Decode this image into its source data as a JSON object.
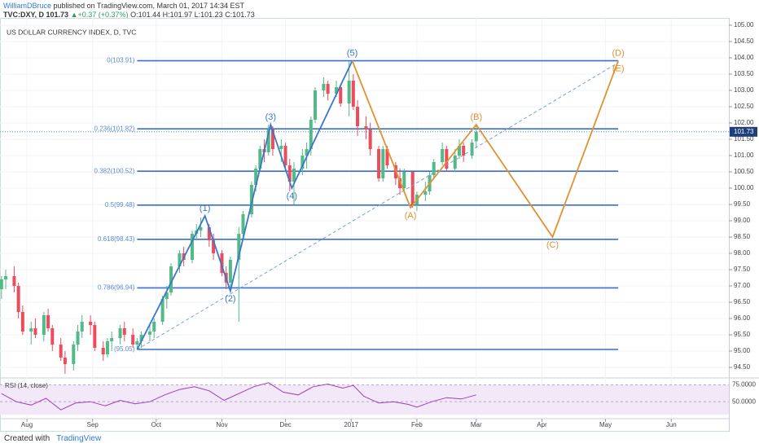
{
  "header": {
    "author": "WilliamDBruce",
    "published": "published on TradingView.com, March 01, 2017 14:34 EST",
    "symbol": "TVC:DXY, D",
    "last": "101.73",
    "change": "+0.37 (+0.37%)",
    "open": "O:101.44",
    "high": "H:101.97",
    "low": "L:101.23",
    "close": "C:101.73"
  },
  "footer": {
    "created": "Created with",
    "brand": "TradingView"
  },
  "chart_data": {
    "type": "candlestick",
    "title": "US DOLLAR CURRENCY INDEX, D, TVC",
    "up_color": "#53b987",
    "down_color": "#eb4d5c",
    "grid": true,
    "xlim": [
      18.3,
      362.2
    ],
    "xticks": [
      {
        "value": 31,
        "label": "Aug"
      },
      {
        "value": 62,
        "label": "Sep"
      },
      {
        "value": 92,
        "label": "Oct"
      },
      {
        "value": 123,
        "label": "Nov"
      },
      {
        "value": 153,
        "label": "Dec"
      },
      {
        "value": 184,
        "label": "2017"
      },
      {
        "value": 215,
        "label": "Feb"
      },
      {
        "value": 243,
        "label": "Mar"
      },
      {
        "value": 274,
        "label": "Apr"
      },
      {
        "value": 304,
        "label": "May"
      },
      {
        "value": 335,
        "label": "Jun"
      }
    ],
    "ylim": [
      94.2,
      105.225
    ],
    "yticks": [
      {
        "value": 94.5,
        "label": "94.50"
      },
      {
        "value": 95,
        "label": "95.00"
      },
      {
        "value": 95.5,
        "label": "95.50"
      },
      {
        "value": 96,
        "label": "96.00"
      },
      {
        "value": 96.5,
        "label": "96.50"
      },
      {
        "value": 97,
        "label": "97.00"
      },
      {
        "value": 97.5,
        "label": "97.50"
      },
      {
        "value": 98,
        "label": "98.00"
      },
      {
        "value": 98.5,
        "label": "98.50"
      },
      {
        "value": 99,
        "label": "99.00"
      },
      {
        "value": 99.5,
        "label": "99.50"
      },
      {
        "value": 100,
        "label": "100.00"
      },
      {
        "value": 100.5,
        "label": "100.50"
      },
      {
        "value": 101,
        "label": "101.00"
      },
      {
        "value": 101.5,
        "label": "101.50"
      },
      {
        "value": 102,
        "label": "102.00"
      },
      {
        "value": 102.5,
        "label": "102.50"
      },
      {
        "value": 103,
        "label": "103.00"
      },
      {
        "value": 103.5,
        "label": "103.50"
      },
      {
        "value": 104,
        "label": "104.00"
      },
      {
        "value": 104.5,
        "label": "104.50"
      },
      {
        "value": 105,
        "label": "105.00"
      }
    ],
    "last_price": {
      "value": 101.73,
      "label": "101.73"
    },
    "candles": [
      [
        19,
        96.9,
        97.3,
        96.6,
        97.2
      ],
      [
        21,
        97.2,
        97.5,
        96.9,
        97.3
      ],
      [
        25,
        97.3,
        97.6,
        96.8,
        97.0
      ],
      [
        27,
        97.0,
        97.1,
        96.0,
        96.2
      ],
      [
        29,
        96.2,
        96.4,
        95.5,
        95.6
      ],
      [
        33,
        95.6,
        95.9,
        95.2,
        95.7
      ],
      [
        35,
        95.7,
        96.0,
        95.4,
        95.5
      ],
      [
        39,
        95.5,
        96.2,
        95.3,
        96.1
      ],
      [
        41,
        96.1,
        96.3,
        95.6,
        95.7
      ],
      [
        43,
        95.7,
        95.8,
        95.0,
        95.2
      ],
      [
        47,
        95.2,
        95.4,
        94.7,
        94.8
      ],
      [
        49,
        94.8,
        95.0,
        94.3,
        94.6
      ],
      [
        53,
        94.6,
        95.3,
        94.4,
        95.2
      ],
      [
        55,
        95.2,
        95.8,
        95.0,
        95.6
      ],
      [
        57,
        95.6,
        96.1,
        95.4,
        95.9
      ],
      [
        61,
        95.9,
        96.1,
        95.5,
        95.8
      ],
      [
        63,
        95.8,
        95.9,
        95.0,
        95.1
      ],
      [
        67,
        95.1,
        95.3,
        94.7,
        94.9
      ],
      [
        69,
        94.9,
        95.4,
        94.8,
        95.3
      ],
      [
        71,
        95.3,
        95.6,
        95.0,
        95.4
      ],
      [
        75,
        95.4,
        95.8,
        95.2,
        95.7
      ],
      [
        77,
        95.7,
        95.9,
        95.3,
        95.5
      ],
      [
        81,
        95.5,
        95.7,
        95.1,
        95.2
      ],
      [
        83,
        95.2,
        95.4,
        95.05,
        95.3
      ],
      [
        85,
        95.3,
        95.6,
        95.1,
        95.5
      ],
      [
        89,
        95.5,
        95.8,
        95.3,
        95.6
      ],
      [
        91,
        95.6,
        96.0,
        95.4,
        95.9
      ],
      [
        95,
        95.9,
        96.7,
        95.8,
        96.6
      ],
      [
        97,
        96.6,
        97.0,
        96.3,
        96.8
      ],
      [
        99,
        96.8,
        97.7,
        96.7,
        97.6
      ],
      [
        103,
        97.6,
        98.1,
        97.4,
        98.0
      ],
      [
        105,
        98.0,
        98.2,
        97.6,
        97.8
      ],
      [
        109,
        97.8,
        98.7,
        97.7,
        98.6
      ],
      [
        111,
        98.6,
        98.9,
        98.4,
        98.7
      ],
      [
        113,
        98.7,
        99.1,
        98.5,
        98.8
      ],
      [
        117,
        98.8,
        98.9,
        98.2,
        98.4
      ],
      [
        119,
        98.4,
        98.6,
        97.8,
        98.0
      ],
      [
        123,
        98.0,
        98.1,
        97.3,
        97.4
      ],
      [
        125,
        97.4,
        97.6,
        96.9,
        97.1
      ],
      [
        127,
        97.1,
        97.9,
        96.85,
        97.8
      ],
      [
        131,
        97.8,
        98.8,
        95.9,
        98.6
      ],
      [
        133,
        98.6,
        99.3,
        98.5,
        99.2
      ],
      [
        137,
        99.2,
        100.2,
        99.1,
        100.1
      ],
      [
        139,
        100.1,
        100.7,
        99.9,
        100.6
      ],
      [
        141,
        100.6,
        101.3,
        100.5,
        101.2
      ],
      [
        143,
        101.2,
        101.5,
        100.8,
        101.1
      ],
      [
        145,
        101.1,
        101.95,
        101.0,
        101.8
      ],
      [
        147,
        101.8,
        101.9,
        101.0,
        101.2
      ],
      [
        151,
        101.2,
        101.5,
        100.8,
        101.3
      ],
      [
        153,
        101.3,
        101.4,
        100.5,
        100.7
      ],
      [
        155,
        100.7,
        100.9,
        99.9,
        100.2
      ],
      [
        157,
        100.2,
        100.8,
        99.5,
        100.6
      ],
      [
        161,
        100.6,
        101.2,
        100.4,
        101.0
      ],
      [
        163,
        101.0,
        101.4,
        100.6,
        101.2
      ],
      [
        165,
        101.2,
        102.2,
        101.0,
        102.1
      ],
      [
        167,
        102.1,
        103.1,
        102.0,
        103.0
      ],
      [
        171,
        103.0,
        103.4,
        102.8,
        103.2
      ],
      [
        173,
        103.2,
        103.3,
        102.7,
        102.9
      ],
      [
        177,
        102.9,
        103.3,
        102.8,
        103.1
      ],
      [
        179,
        103.1,
        103.2,
        102.5,
        102.6
      ],
      [
        183,
        102.6,
        103.9,
        102.2,
        103.3
      ],
      [
        185,
        103.3,
        103.5,
        102.4,
        102.5
      ],
      [
        187,
        102.5,
        102.7,
        101.6,
        101.9
      ],
      [
        191,
        101.9,
        102.2,
        101.5,
        101.8
      ],
      [
        193,
        101.8,
        102.0,
        101.0,
        101.2
      ],
      [
        197,
        101.2,
        101.3,
        100.2,
        100.3
      ],
      [
        199,
        100.3,
        101.3,
        100.2,
        101.2
      ],
      [
        201,
        101.2,
        101.3,
        100.6,
        100.7
      ],
      [
        205,
        100.7,
        100.8,
        100.1,
        100.3
      ],
      [
        207,
        100.3,
        100.6,
        99.8,
        100.0
      ],
      [
        209,
        100.0,
        100.6,
        99.9,
        100.5
      ],
      [
        213,
        100.5,
        100.5,
        99.4,
        99.5
      ],
      [
        215,
        99.5,
        99.9,
        99.3,
        99.8
      ],
      [
        219,
        99.8,
        100.2,
        99.6,
        99.9
      ],
      [
        221,
        99.9,
        100.5,
        99.8,
        100.4
      ],
      [
        223,
        100.4,
        100.9,
        100.3,
        100.8
      ],
      [
        227,
        100.8,
        101.4,
        100.7,
        101.2
      ],
      [
        229,
        101.2,
        101.3,
        100.5,
        100.6
      ],
      [
        233,
        100.6,
        101.2,
        100.5,
        101.0
      ],
      [
        235,
        101.0,
        101.5,
        100.9,
        101.3
      ],
      [
        237,
        101.3,
        101.4,
        100.8,
        101.0
      ],
      [
        241,
        101.0,
        101.5,
        100.9,
        101.4
      ],
      [
        243,
        101.44,
        101.97,
        101.23,
        101.73
      ]
    ],
    "fib_start": 83,
    "fib_end": 310,
    "fib_levels": [
      {
        "value": 103.91,
        "label": "0(103.91)"
      },
      {
        "value": 101.82,
        "label": "0.236(101.82)"
      },
      {
        "value": 100.52,
        "label": "0.382(100.52)"
      },
      {
        "value": 99.48,
        "label": "0.5(99.48)"
      },
      {
        "value": 98.43,
        "label": "0.618(98.43)"
      },
      {
        "value": 96.94,
        "label": "0.786(96.94)"
      },
      {
        "value": 95.05,
        "label": "(95.05)"
      }
    ],
    "trendline": {
      "x": [
        83,
        310
      ],
      "y": [
        95.05,
        103.85
      ],
      "color": "#7a9fd8"
    },
    "waves": [
      {
        "color": "#3b77c8",
        "x": [
          83,
          115,
          127,
          146,
          156,
          184.5
        ],
        "y": [
          95.05,
          99.15,
          96.85,
          101.95,
          100.0,
          103.91
        ],
        "labels": [
          null,
          "(1)",
          "(2)",
          "(3)",
          "(4)",
          "(5)"
        ]
      },
      {
        "color": "#e0922f",
        "x": [
          184.5,
          212,
          243,
          279,
          310
        ],
        "y": [
          103.91,
          99.4,
          101.95,
          98.5,
          103.91
        ],
        "labels": [
          null,
          "(A)",
          "(B)",
          "(C)",
          "(D)"
        ],
        "end_label": "(E)"
      }
    ],
    "rsi": {
      "label": "RSI (14, close)",
      "color": "#9c3fb8",
      "ylim": [
        25,
        85
      ],
      "yticks": [
        {
          "value": 50,
          "label": "50.0000"
        },
        {
          "value": 75,
          "label": "75.0000"
        }
      ],
      "x": [
        19,
        26,
        33,
        40,
        47,
        54,
        61,
        68,
        75,
        82,
        89,
        96,
        103,
        110,
        117,
        124,
        131,
        138,
        145,
        152,
        159,
        166,
        173,
        180,
        185,
        190,
        197,
        204,
        211,
        215,
        222,
        229,
        236,
        243
      ],
      "values": [
        62,
        50,
        45,
        55,
        38,
        48,
        50,
        44,
        52,
        47,
        50,
        60,
        68,
        72,
        66,
        52,
        62,
        72,
        78,
        64,
        60,
        72,
        76,
        70,
        74,
        58,
        48,
        50,
        46,
        42,
        50,
        56,
        54,
        60
      ]
    }
  }
}
